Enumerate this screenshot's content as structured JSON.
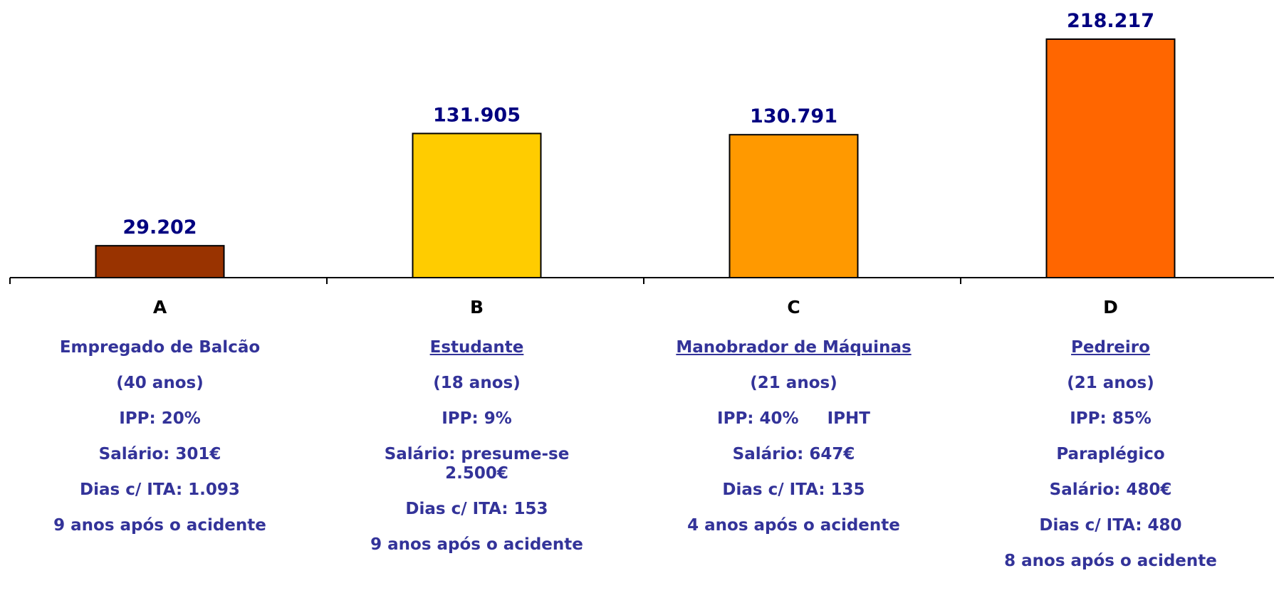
{
  "chart_data": {
    "type": "bar",
    "categories": [
      "A",
      "B",
      "C",
      "D"
    ],
    "values": [
      29202,
      131905,
      130791,
      218217
    ],
    "value_labels": [
      "29.202",
      "131.905",
      "130.791",
      "218.217"
    ],
    "colors": [
      "#993300",
      "#ffcc00",
      "#ff9900",
      "#ff6600"
    ],
    "details": [
      [
        "Empregado de Balcão",
        "(40 anos)",
        "IPP: 20%",
        "Salário: 301€",
        "Dias c/ ITA: 1.093",
        "9 anos após o acidente"
      ],
      [
        "Estudante",
        "(18 anos)",
        "IPP: 9%",
        "Salário: presume-se 2.500€",
        "Dias c/ ITA: 153",
        "9 anos após o acidente"
      ],
      [
        "Manobrador de Máquinas",
        "(21 anos)",
        "IPP: 40%     IPHT",
        "Salário: 647€",
        "Dias c/ ITA: 135",
        "4 anos após o acidente"
      ],
      [
        "Pedreiro",
        "(21 anos)",
        "IPP: 85%",
        "Paraplégico",
        "Salário: 480€",
        "Dias c/ ITA: 480",
        "8 anos após o acidente"
      ]
    ]
  }
}
